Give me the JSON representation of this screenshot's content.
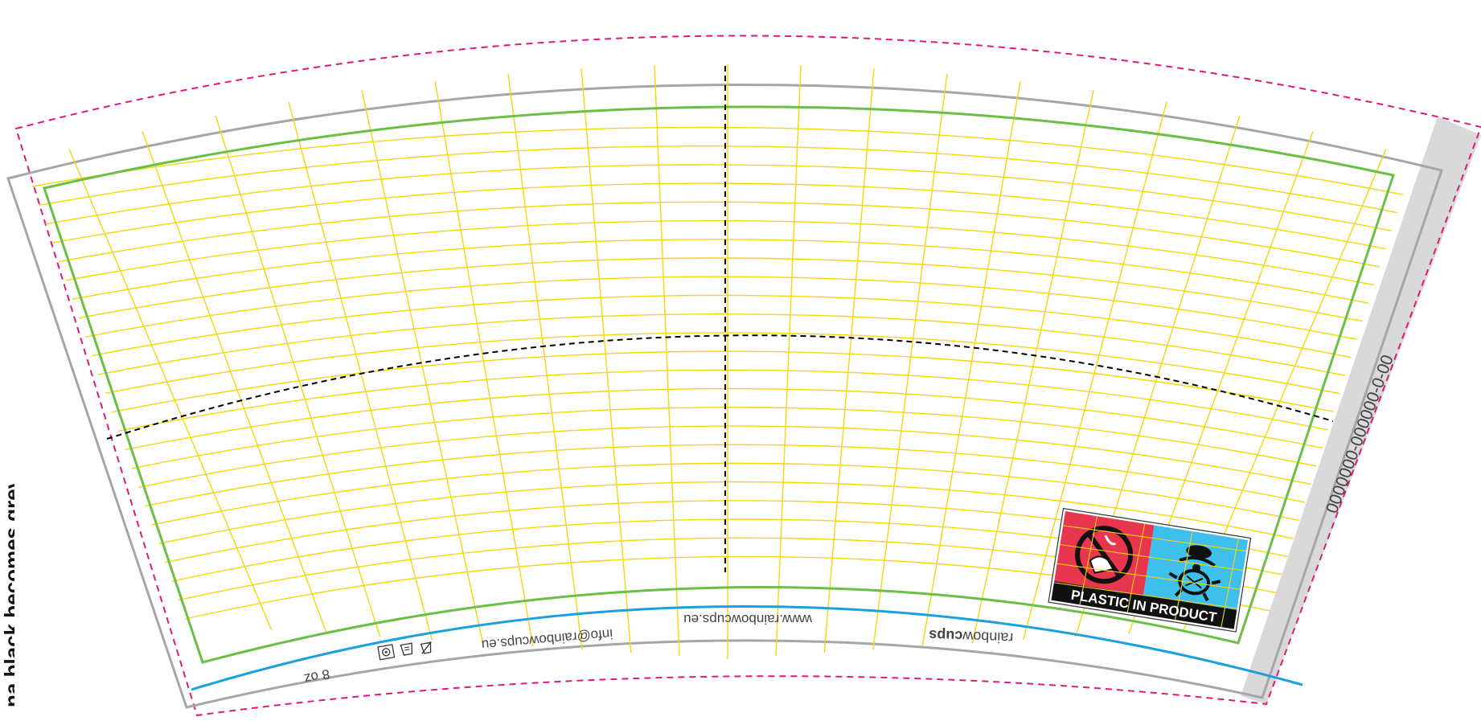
{
  "template": {
    "side_note": "na black becomes grey.",
    "code": "0000000-000000-0-00",
    "website": "www.rainbowcups.eu",
    "email": "info@rainbowcups.eu",
    "brand_plain": "rainbow",
    "brand_bold": "cups",
    "size": "8 oz",
    "warning_label": "PLASTIC IN PRODUCT",
    "colors": {
      "bleed_line": "#e0197d",
      "cut_line": "#a6a6a6",
      "safe_area": "#6abf45",
      "grid": "#f5d60a",
      "bottom_line": "#1aa0dc",
      "glue_strip": "#d9d9d9",
      "fold_line": "#000000",
      "warning_red": "#e8364f",
      "warning_blue": "#3fc0ec"
    },
    "icons": [
      "recycle-icon",
      "no-microwave-icon",
      "hot-drink-icon"
    ]
  }
}
